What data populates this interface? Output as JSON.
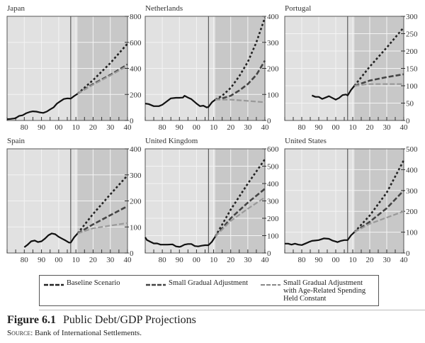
{
  "figure": {
    "number": "Figure 6.1",
    "title": "Public Debt/GDP Projections",
    "source_label": "Source:",
    "source_text": "Bank of International Settlements."
  },
  "legend": [
    {
      "label": "Baseline Scenario",
      "color": "#222222",
      "style": "dotted-dark"
    },
    {
      "label": "Small Gradual Adjustment",
      "color": "#444444",
      "style": "dashed-dark"
    },
    {
      "label": "Small Gradual Adjustment\nwith Age-Related Spending\nHeld Constant",
      "color": "#888888",
      "style": "dashed-light"
    }
  ],
  "chart_data": [
    {
      "type": "line",
      "title": "Japan",
      "xlim": [
        1970,
        2040
      ],
      "ylim": [
        0,
        800
      ],
      "yticks": [
        0,
        200,
        400,
        600,
        800
      ],
      "xticks": [
        "80",
        "90",
        "00",
        "10",
        "20",
        "30",
        "40"
      ],
      "history_end": 2007,
      "projection_shade_start": 2011,
      "series": [
        {
          "name": "Historical",
          "x": [
            1970,
            1972,
            1974,
            1975,
            1977,
            1979,
            1981,
            1983,
            1985,
            1987,
            1989,
            1991,
            1993,
            1995,
            1997,
            1999,
            2001,
            2003,
            2005,
            2007,
            2009,
            2011
          ],
          "values": [
            10,
            12,
            15,
            18,
            35,
            40,
            55,
            65,
            70,
            68,
            62,
            58,
            68,
            85,
            100,
            130,
            148,
            165,
            170,
            168,
            188,
            205
          ]
        },
        {
          "name": "Baseline Scenario",
          "x": [
            2011,
            2020,
            2030,
            2040
          ],
          "values": [
            205,
            310,
            440,
            590
          ]
        },
        {
          "name": "Small Gradual Adjustment",
          "x": [
            2011,
            2020,
            2030,
            2040
          ],
          "values": [
            205,
            280,
            350,
            430
          ]
        },
        {
          "name": "Small Gradual Adjustment with Age-Related Spending Held Constant",
          "x": [
            2011,
            2020,
            2030,
            2040
          ],
          "values": [
            205,
            275,
            345,
            420
          ]
        }
      ]
    },
    {
      "type": "line",
      "title": "Netherlands",
      "xlim": [
        1970,
        2040
      ],
      "ylim": [
        0,
        400
      ],
      "yticks": [
        0,
        100,
        200,
        300,
        400
      ],
      "xticks": [
        "80",
        "90",
        "00",
        "10",
        "20",
        "30",
        "40"
      ],
      "history_end": 2007,
      "projection_shade_start": 2011,
      "series": [
        {
          "name": "Historical",
          "x": [
            1970,
            1972,
            1975,
            1978,
            1980,
            1983,
            1985,
            1988,
            1990,
            1992,
            1993,
            1995,
            1997,
            2000,
            2002,
            2004,
            2006,
            2007,
            2009,
            2011
          ],
          "values": [
            65,
            63,
            55,
            55,
            60,
            75,
            85,
            87,
            87,
            88,
            95,
            88,
            82,
            65,
            55,
            57,
            50,
            52,
            70,
            80
          ]
        },
        {
          "name": "Baseline Scenario",
          "x": [
            2011,
            2015,
            2020,
            2025,
            2030,
            2035,
            2040
          ],
          "values": [
            80,
            95,
            125,
            170,
            225,
            300,
            395
          ]
        },
        {
          "name": "Small Gradual Adjustment",
          "x": [
            2011,
            2015,
            2020,
            2025,
            2030,
            2035,
            2040
          ],
          "values": [
            80,
            85,
            95,
            115,
            140,
            175,
            230
          ]
        },
        {
          "name": "Small Gradual Adjustment with Age-Related Spending Held Constant",
          "x": [
            2011,
            2020,
            2030,
            2040
          ],
          "values": [
            80,
            80,
            75,
            70
          ]
        }
      ]
    },
    {
      "type": "line",
      "title": "Portugal",
      "xlim": [
        1970,
        2040
      ],
      "ylim": [
        0,
        300
      ],
      "yticks": [
        0,
        50,
        100,
        150,
        200,
        250,
        300
      ],
      "xticks": [
        "80",
        "90",
        "00",
        "10",
        "20",
        "30",
        "40"
      ],
      "history_end": 2007,
      "projection_shade_start": 2011,
      "series": [
        {
          "name": "Historical",
          "x": [
            1986,
            1988,
            1990,
            1992,
            1994,
            1996,
            1998,
            2000,
            2002,
            2004,
            2006,
            2007,
            2009,
            2011
          ],
          "values": [
            72,
            68,
            68,
            62,
            66,
            70,
            65,
            60,
            65,
            73,
            75,
            72,
            88,
            100
          ]
        },
        {
          "name": "Baseline Scenario",
          "x": [
            2011,
            2020,
            2030,
            2040
          ],
          "values": [
            100,
            155,
            210,
            268
          ]
        },
        {
          "name": "Small Gradual Adjustment",
          "x": [
            2011,
            2020,
            2030,
            2040
          ],
          "values": [
            100,
            115,
            125,
            133
          ]
        },
        {
          "name": "Small Gradual Adjustment with Age-Related Spending Held Constant",
          "x": [
            2011,
            2020,
            2030,
            2040
          ],
          "values": [
            100,
            105,
            105,
            105
          ]
        }
      ]
    },
    {
      "type": "line",
      "title": "Spain",
      "xlim": [
        1970,
        2040
      ],
      "ylim": [
        0,
        400
      ],
      "yticks": [
        0,
        100,
        200,
        300,
        400
      ],
      "xticks": [
        "80",
        "90",
        "00",
        "10",
        "20",
        "30",
        "40"
      ],
      "history_end": 2007,
      "projection_shade_start": 2011,
      "series": [
        {
          "name": "Historical",
          "x": [
            1980,
            1982,
            1984,
            1986,
            1988,
            1990,
            1992,
            1994,
            1996,
            1998,
            2000,
            2002,
            2004,
            2006,
            2007,
            2009,
            2011
          ],
          "values": [
            22,
            32,
            45,
            48,
            42,
            45,
            55,
            68,
            75,
            72,
            62,
            55,
            48,
            40,
            40,
            60,
            75
          ]
        },
        {
          "name": "Baseline Scenario",
          "x": [
            2011,
            2020,
            2030,
            2040
          ],
          "values": [
            75,
            150,
            225,
            298
          ]
        },
        {
          "name": "Small Gradual Adjustment",
          "x": [
            2011,
            2020,
            2030,
            2040
          ],
          "values": [
            75,
            110,
            145,
            180
          ]
        },
        {
          "name": "Small Gradual Adjustment with Age-Related Spending Held Constant",
          "x": [
            2011,
            2020,
            2030,
            2040
          ],
          "values": [
            75,
            95,
            105,
            115
          ]
        }
      ]
    },
    {
      "type": "line",
      "title": "United Kingdom",
      "xlim": [
        1970,
        2040
      ],
      "ylim": [
        0,
        600
      ],
      "yticks": [
        0,
        100,
        200,
        300,
        400,
        500,
        600
      ],
      "xticks": [
        "80",
        "90",
        "00",
        "10",
        "20",
        "30",
        "40"
      ],
      "history_end": 2007,
      "projection_shade_start": 2011,
      "series": [
        {
          "name": "Historical",
          "x": [
            1970,
            1971,
            1973,
            1975,
            1977,
            1979,
            1981,
            1983,
            1986,
            1988,
            1990,
            1991,
            1993,
            1995,
            1997,
            1999,
            2001,
            2003,
            2005,
            2007,
            2009,
            2011
          ],
          "values": [
            90,
            75,
            65,
            55,
            55,
            48,
            48,
            48,
            50,
            38,
            35,
            38,
            48,
            52,
            52,
            40,
            38,
            42,
            45,
            45,
            65,
            95
          ]
        },
        {
          "name": "Baseline Scenario",
          "x": [
            2011,
            2020,
            2030,
            2040
          ],
          "values": [
            95,
            250,
            400,
            540
          ]
        },
        {
          "name": "Small Gradual Adjustment",
          "x": [
            2011,
            2020,
            2030,
            2040
          ],
          "values": [
            95,
            200,
            290,
            370
          ]
        },
        {
          "name": "Small Gradual Adjustment with Age-Related Spending Held Constant",
          "x": [
            2011,
            2020,
            2030,
            2040
          ],
          "values": [
            95,
            185,
            255,
            320
          ]
        }
      ]
    },
    {
      "type": "line",
      "title": "United States",
      "xlim": [
        1970,
        2040
      ],
      "ylim": [
        0,
        500
      ],
      "yticks": [
        0,
        100,
        200,
        300,
        400,
        500
      ],
      "xticks": [
        "80",
        "90",
        "00",
        "10",
        "20",
        "30",
        "40"
      ],
      "history_end": 2007,
      "projection_shade_start": 2011,
      "series": [
        {
          "name": "Historical",
          "x": [
            1970,
            1972,
            1974,
            1976,
            1978,
            1980,
            1982,
            1984,
            1986,
            1988,
            1990,
            1993,
            1996,
            1998,
            2000,
            2001,
            2003,
            2005,
            2007,
            2009,
            2011
          ],
          "values": [
            45,
            45,
            40,
            45,
            40,
            38,
            45,
            52,
            58,
            60,
            62,
            70,
            68,
            60,
            55,
            52,
            58,
            62,
            62,
            85,
            100
          ]
        },
        {
          "name": "Baseline Scenario",
          "x": [
            2011,
            2020,
            2030,
            2040
          ],
          "values": [
            100,
            180,
            290,
            445
          ]
        },
        {
          "name": "Small Gradual Adjustment",
          "x": [
            2011,
            2020,
            2030,
            2040
          ],
          "values": [
            100,
            150,
            215,
            300
          ]
        },
        {
          "name": "Small Gradual Adjustment with Age-Related Spending Held Constant",
          "x": [
            2011,
            2020,
            2030,
            2040
          ],
          "values": [
            100,
            140,
            170,
            200
          ]
        }
      ]
    }
  ]
}
